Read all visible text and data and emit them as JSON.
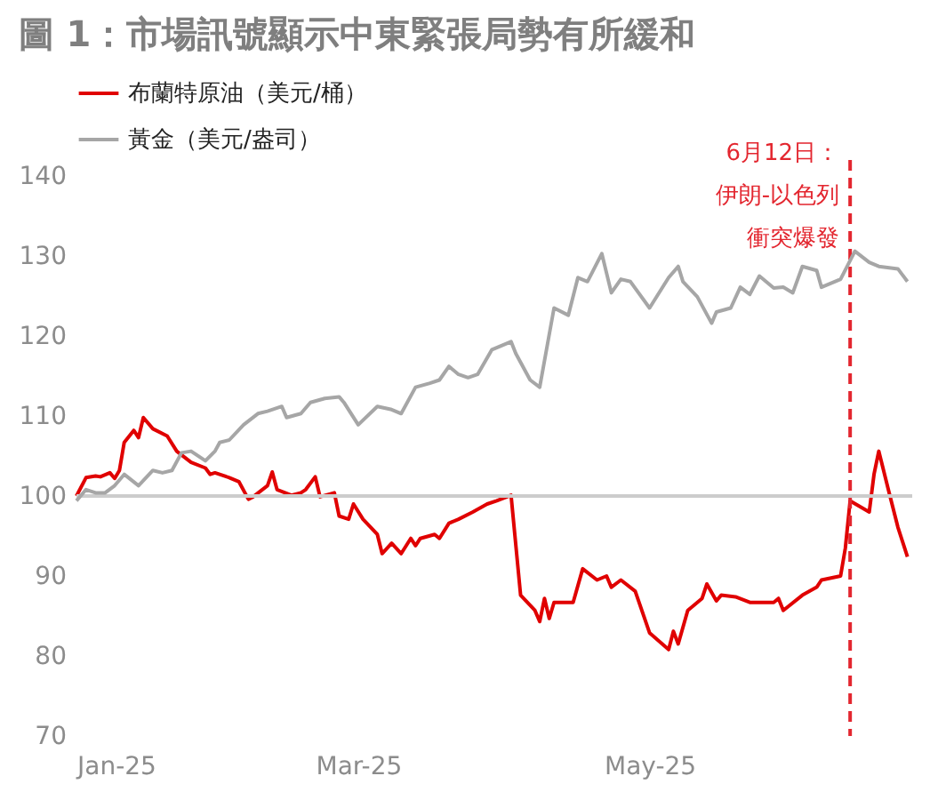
{
  "chart_data": {
    "type": "line",
    "title": "圖 1：市場訊號顯示中東緊張局勢有所緩和",
    "xlim": [
      "2025-01-01",
      "2025-06-25"
    ],
    "xticks": [
      {
        "value": "2025-01-01",
        "label": "Jan-25"
      },
      {
        "value": "2025-03-01",
        "label": "Mar-25"
      },
      {
        "value": "2025-05-01",
        "label": "May-25"
      }
    ],
    "ylim": [
      70,
      142
    ],
    "yticks": [
      70,
      80,
      90,
      100,
      110,
      120,
      130,
      140
    ],
    "grid": false,
    "legend": "top",
    "line_style": "solid",
    "ref_lines": [
      {
        "axis": "y",
        "value": 100,
        "color": "#cccccc",
        "line_style": "solid"
      },
      {
        "axis": "x",
        "value": "2025-06-12",
        "label": "6月12日：伊朗-以色列衝突爆發",
        "color": "#e3262f",
        "line_style": "dashed"
      }
    ],
    "series": [
      {
        "name": "布蘭特原油（美元/桶）",
        "color": "#e00000",
        "x": [
          "2025-01-01",
          "2025-01-03",
          "2025-01-05",
          "2025-01-06",
          "2025-01-08",
          "2025-01-09",
          "2025-01-10",
          "2025-01-11",
          "2025-01-13",
          "2025-01-14",
          "2025-01-15",
          "2025-01-17",
          "2025-01-20",
          "2025-01-22",
          "2025-01-25",
          "2025-01-28",
          "2025-01-29",
          "2025-01-30",
          "2025-02-02",
          "2025-02-04",
          "2025-02-06",
          "2025-02-07",
          "2025-02-10",
          "2025-02-11",
          "2025-02-12",
          "2025-02-15",
          "2025-02-17",
          "2025-02-18",
          "2025-02-20",
          "2025-02-21",
          "2025-02-24",
          "2025-02-25",
          "2025-02-27",
          "2025-02-28",
          "2025-03-02",
          "2025-03-05",
          "2025-03-06",
          "2025-03-08",
          "2025-03-10",
          "2025-03-12",
          "2025-03-13",
          "2025-03-14",
          "2025-03-17",
          "2025-03-18",
          "2025-03-20",
          "2025-03-22",
          "2025-03-25",
          "2025-03-28",
          "2025-03-30",
          "2025-04-02",
          "2025-04-04",
          "2025-04-07",
          "2025-04-08",
          "2025-04-09",
          "2025-04-10",
          "2025-04-11",
          "2025-04-15",
          "2025-04-17",
          "2025-04-20",
          "2025-04-22",
          "2025-04-23",
          "2025-04-25",
          "2025-04-28",
          "2025-05-01",
          "2025-05-05",
          "2025-05-06",
          "2025-05-07",
          "2025-05-09",
          "2025-05-12",
          "2025-05-13",
          "2025-05-15",
          "2025-05-16",
          "2025-05-19",
          "2025-05-22",
          "2025-05-27",
          "2025-05-28",
          "2025-05-29",
          "2025-06-02",
          "2025-06-05",
          "2025-06-06",
          "2025-06-10",
          "2025-06-11",
          "2025-06-12",
          "2025-06-16",
          "2025-06-17",
          "2025-06-18",
          "2025-06-20",
          "2025-06-22",
          "2025-06-24"
        ],
        "values": [
          100,
          102.3,
          102.5,
          102.4,
          102.9,
          102.2,
          103.2,
          106.7,
          108.2,
          107.3,
          109.8,
          108.4,
          107.5,
          105.6,
          104.2,
          103.5,
          102.7,
          102.9,
          102.3,
          101.8,
          99.6,
          99.9,
          101.3,
          103,
          100.8,
          100.1,
          100.4,
          100.8,
          102.4,
          99.9,
          100.4,
          97.5,
          97.1,
          99,
          97.1,
          95.2,
          92.8,
          94.1,
          92.8,
          94.7,
          93.8,
          94.7,
          95.2,
          94.7,
          96.6,
          97.1,
          98,
          99,
          99.4,
          100.1,
          87.6,
          85.7,
          84.3,
          87.2,
          84.7,
          86.7,
          86.7,
          90.9,
          89.5,
          90,
          88.6,
          89.5,
          88.1,
          82.9,
          80.8,
          83.1,
          81.5,
          85.7,
          87.2,
          89,
          86.9,
          87.6,
          87.4,
          86.7,
          86.7,
          87.2,
          85.7,
          87.6,
          88.6,
          89.5,
          90,
          93.5,
          99.4,
          98,
          102.7,
          105.6,
          100.8,
          96.1,
          92.4
        ]
      },
      {
        "name": "黃金（美元/盎司）",
        "color": "#a6a6a6",
        "x": [
          "2025-01-01",
          "2025-01-03",
          "2025-01-05",
          "2025-01-07",
          "2025-01-09",
          "2025-01-11",
          "2025-01-14",
          "2025-01-17",
          "2025-01-19",
          "2025-01-21",
          "2025-01-23",
          "2025-01-25",
          "2025-01-28",
          "2025-01-30",
          "2025-01-31",
          "2025-02-02",
          "2025-02-05",
          "2025-02-08",
          "2025-02-10",
          "2025-02-13",
          "2025-02-14",
          "2025-02-17",
          "2025-02-19",
          "2025-02-22",
          "2025-02-25",
          "2025-02-26",
          "2025-03-01",
          "2025-03-05",
          "2025-03-08",
          "2025-03-10",
          "2025-03-13",
          "2025-03-16",
          "2025-03-18",
          "2025-03-20",
          "2025-03-22",
          "2025-03-24",
          "2025-03-26",
          "2025-03-29",
          "2025-04-02",
          "2025-04-03",
          "2025-04-06",
          "2025-04-08",
          "2025-04-11",
          "2025-04-14",
          "2025-04-16",
          "2025-04-18",
          "2025-04-21",
          "2025-04-23",
          "2025-04-25",
          "2025-04-27",
          "2025-05-01",
          "2025-05-05",
          "2025-05-07",
          "2025-05-08",
          "2025-05-11",
          "2025-05-14",
          "2025-05-15",
          "2025-05-18",
          "2025-05-20",
          "2025-05-22",
          "2025-05-24",
          "2025-05-27",
          "2025-05-29",
          "2025-05-31",
          "2025-06-02",
          "2025-06-05",
          "2025-06-06",
          "2025-06-10",
          "2025-06-13",
          "2025-06-16",
          "2025-06-18",
          "2025-06-22",
          "2025-06-24"
        ],
        "values": [
          99.4,
          100.8,
          100.4,
          100.4,
          101.3,
          102.7,
          101.3,
          103.2,
          102.9,
          103.2,
          105.4,
          105.6,
          104.4,
          105.6,
          106.7,
          107,
          108.9,
          110.3,
          110.6,
          111.2,
          109.8,
          110.3,
          111.7,
          112.2,
          112.4,
          111.7,
          108.9,
          111.2,
          110.8,
          110.3,
          113.6,
          114.1,
          114.5,
          116.2,
          115.2,
          114.8,
          115.2,
          118.3,
          119.3,
          117.8,
          114.5,
          113.6,
          123.5,
          122.6,
          127.3,
          126.8,
          130.3,
          125.4,
          127.1,
          126.8,
          123.5,
          127.3,
          128.7,
          126.8,
          124.9,
          121.6,
          123,
          123.5,
          126.1,
          125.2,
          127.5,
          126,
          126.1,
          125.4,
          128.7,
          128.2,
          126.1,
          127.1,
          130.6,
          129.2,
          128.7,
          128.4,
          126.8
        ]
      }
    ]
  }
}
